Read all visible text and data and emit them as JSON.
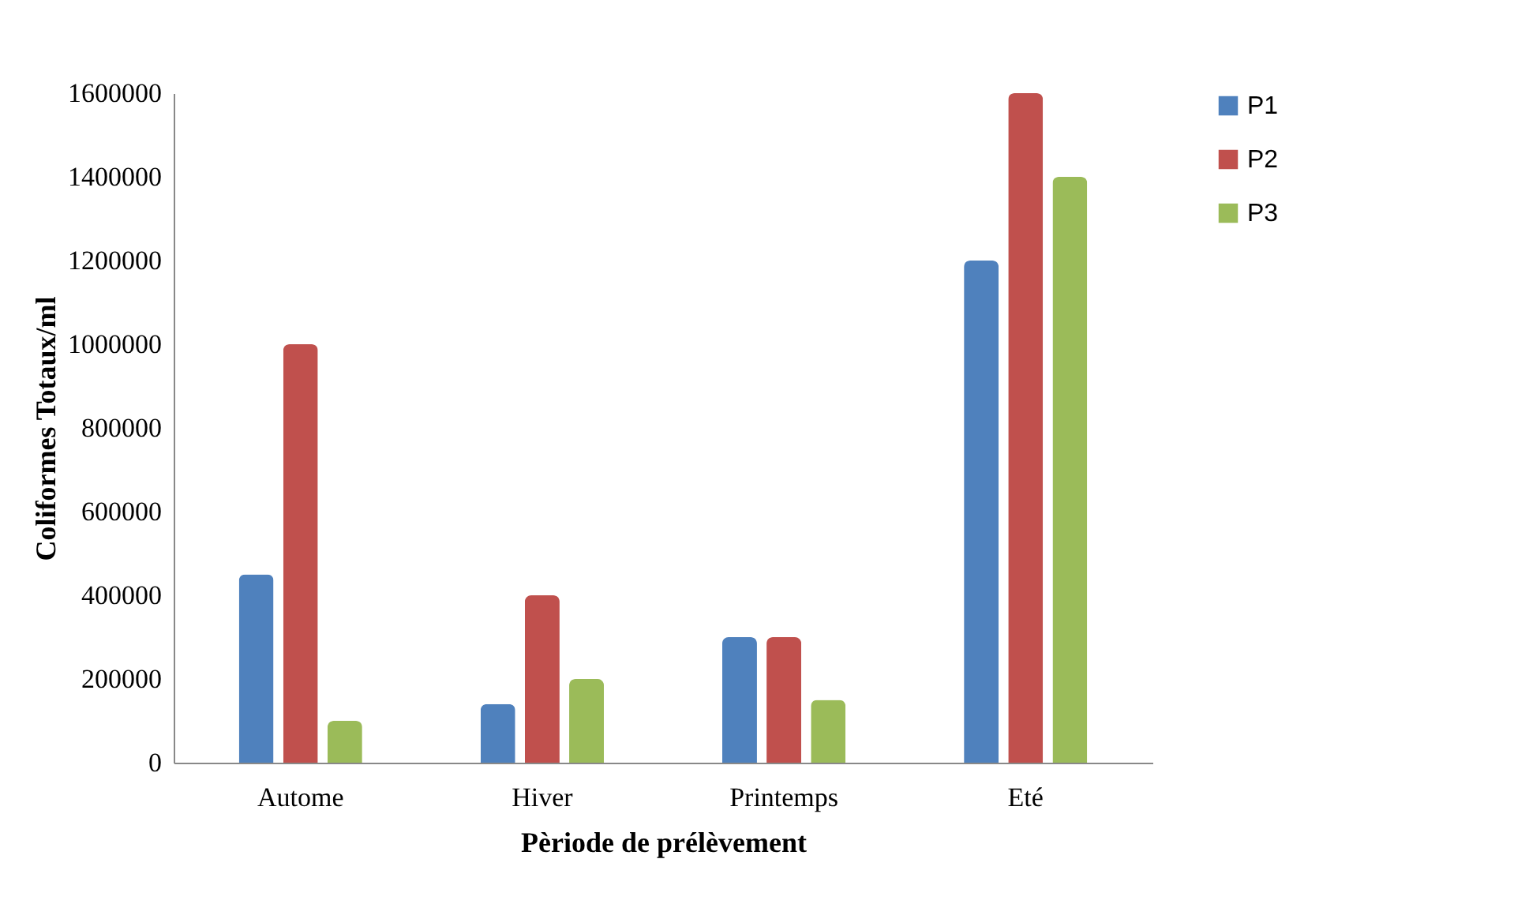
{
  "chart_data": {
    "type": "bar",
    "xlabel": "Pèriode de prélèvement",
    "ylabel": "Coliformes Totaux/ml",
    "categories": [
      "Autome",
      "Hiver",
      "Printemps",
      "Eté"
    ],
    "series": [
      {
        "name": "P1",
        "color": "#4f81bd",
        "values": [
          450000,
          140000,
          300000,
          1200000
        ]
      },
      {
        "name": "P2",
        "color": "#c0504d",
        "values": [
          1000000,
          400000,
          300000,
          1600000
        ]
      },
      {
        "name": "P3",
        "color": "#9bbb59",
        "values": [
          100000,
          200000,
          150000,
          1400000
        ]
      }
    ],
    "ylim": [
      0,
      1600000
    ],
    "yticks": [
      0,
      200000,
      400000,
      600000,
      800000,
      1000000,
      1200000,
      1400000,
      1600000
    ],
    "grid": false,
    "legend": "right"
  }
}
